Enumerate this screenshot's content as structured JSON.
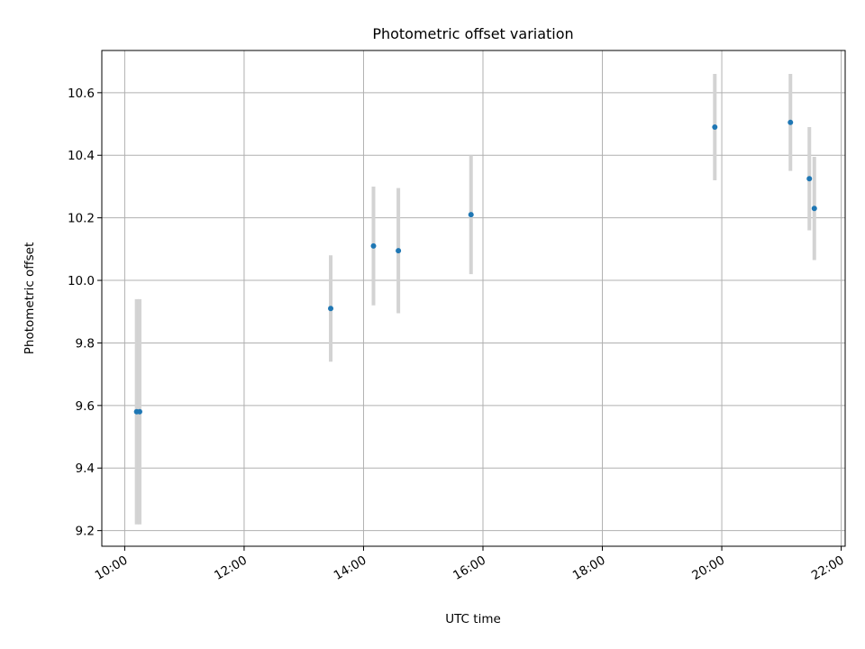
{
  "chart_data": {
    "type": "scatter",
    "title": "Photometric offset variation",
    "xlabel": "UTC time",
    "ylabel": "Photometric offset",
    "xlim": [
      "09:37",
      "22:04"
    ],
    "ylim": [
      9.15,
      10.735
    ],
    "x_ticks": [
      "10:00",
      "12:00",
      "14:00",
      "16:00",
      "18:00",
      "20:00",
      "22:00"
    ],
    "y_ticks": [
      9.2,
      9.4,
      9.6,
      9.8,
      10.0,
      10.2,
      10.4,
      10.6
    ],
    "grid": true,
    "marker_color": "#1f77b4",
    "errorbar_color": "#d3d3d3",
    "points": [
      {
        "x": "10:12",
        "y": 9.58,
        "yerr": 0.36
      },
      {
        "x": "10:15",
        "y": 9.58,
        "yerr": 0.36
      },
      {
        "x": "13:27",
        "y": 9.91,
        "yerr": 0.17
      },
      {
        "x": "14:10",
        "y": 10.11,
        "yerr": 0.19
      },
      {
        "x": "14:35",
        "y": 10.095,
        "yerr": 0.2
      },
      {
        "x": "15:48",
        "y": 10.21,
        "yerr": 0.19
      },
      {
        "x": "19:53",
        "y": 10.49,
        "yerr": 0.17
      },
      {
        "x": "21:09",
        "y": 10.505,
        "yerr": 0.155
      },
      {
        "x": "21:28",
        "y": 10.325,
        "yerr": 0.165
      },
      {
        "x": "21:33",
        "y": 10.23,
        "yerr": 0.165
      }
    ]
  }
}
